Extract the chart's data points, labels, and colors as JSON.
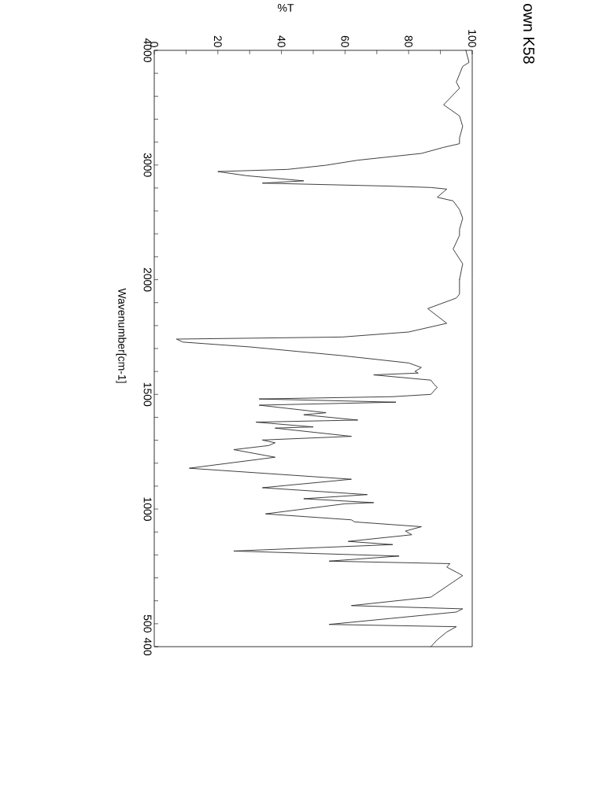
{
  "chart_data": [
    {
      "type": "line",
      "xlabel": "%T",
      "annotations": [
        "own K58"
      ],
      "series": [
        {
          "color": "#2b2b2b",
          "x": [
            98,
            99,
            97,
            95,
            96,
            91,
            96,
            97,
            96,
            96,
            91,
            84,
            64,
            54,
            42,
            20,
            29,
            47,
            34,
            74,
            87,
            92,
            89,
            94,
            96,
            97,
            96,
            96,
            94,
            97,
            96
          ],
          "values": [
            4000,
            3895,
            3860,
            3723,
            3670,
            3525,
            3428,
            3337,
            3236,
            3186,
            3154,
            3101,
            3042,
            2998,
            2962,
            2943,
            2907,
            2862,
            2842,
            2816,
            2804,
            2790,
            2719,
            2687,
            2611,
            2536,
            2438,
            2387,
            2267,
            2139,
            2000
          ]
        }
      ],
      "xlim": [
        0,
        100
      ],
      "ylim": [
        2000,
        4000
      ],
      "xticks": [
        0,
        {
          "value": 10,
          "label": null
        },
        20,
        {
          "value": 30,
          "label": null
        },
        40,
        {
          "value": 50,
          "label": null
        },
        60,
        {
          "value": 70,
          "label": null
        },
        80,
        {
          "value": 90,
          "label": null
        },
        100
      ],
      "yticks": [
        {
          "value": 2200,
          "label": null
        },
        {
          "value": 2400,
          "label": null
        },
        {
          "value": 2600,
          "label": null
        },
        {
          "value": 2800,
          "label": null
        },
        3000,
        {
          "value": 3200,
          "label": null
        },
        {
          "value": 3400,
          "label": null
        },
        {
          "value": 3600,
          "label": null
        },
        {
          "value": 3800,
          "label": null
        },
        4000
      ]
    },
    {
      "type": "line",
      "ylabel": "Wavenumber[cm-1]",
      "series": [
        {
          "color": "#2b2b2b",
          "x": [
            96,
            96,
            95,
            86,
            92,
            80,
            59,
            30,
            7,
            9,
            30,
            59,
            80,
            84,
            82,
            83,
            69,
            87,
            88,
            89,
            87,
            75,
            33,
            76,
            33,
            54,
            47,
            64,
            32,
            50,
            38,
            62,
            34,
            38,
            36,
            25,
            38,
            11,
            62,
            34,
            67,
            47,
            69,
            60,
            35,
            62,
            63,
            84,
            79,
            81,
            61,
            75,
            25,
            77,
            55,
            93,
            92,
            97,
            94,
            87,
            62,
            97,
            95,
            55,
            95,
            92,
            89,
            87
          ],
          "values": [
            2000,
            1937,
            1920,
            1874,
            1810,
            1772,
            1750,
            1745,
            1741,
            1728,
            1707,
            1669,
            1637,
            1617,
            1600,
            1593,
            1585,
            1562,
            1544,
            1531,
            1500,
            1490,
            1480,
            1466,
            1453,
            1420,
            1411,
            1388,
            1379,
            1358,
            1353,
            1317,
            1301,
            1289,
            1277,
            1259,
            1226,
            1178,
            1130,
            1093,
            1063,
            1045,
            1028,
            1023,
            979,
            953,
            944,
            923,
            904,
            888,
            859,
            845,
            817,
            795,
            773,
            762,
            747,
            710,
            682,
            616,
            579,
            565,
            551,
            497,
            487,
            464,
            430,
            400
          ]
        }
      ],
      "xlim": [
        0,
        100
      ],
      "ylim": [
        400,
        2000
      ],
      "yticks": [
        400,
        500,
        {
          "value": 600,
          "label": null
        },
        {
          "value": 700,
          "label": null
        },
        {
          "value": 800,
          "label": null
        },
        {
          "value": 900,
          "label": null
        },
        1000,
        {
          "value": 1100,
          "label": null
        },
        {
          "value": 1200,
          "label": null
        },
        {
          "value": 1300,
          "label": null
        },
        {
          "value": 1400,
          "label": null
        },
        1500,
        {
          "value": 1600,
          "label": null
        },
        {
          "value": 1700,
          "label": null
        },
        {
          "value": 1800,
          "label": null
        },
        {
          "value": 1900,
          "label": null
        },
        2000
      ],
      "tick_labels": "y"
    }
  ]
}
